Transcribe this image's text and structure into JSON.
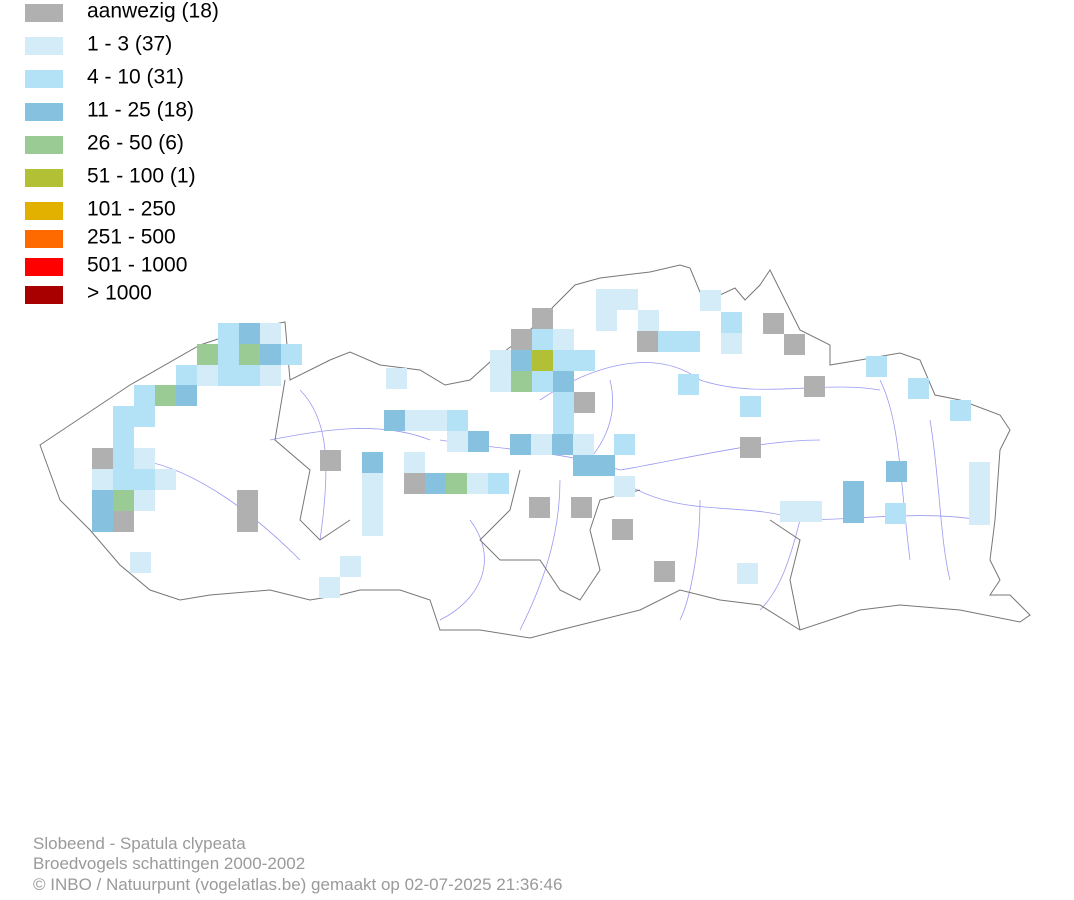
{
  "legend": [
    {
      "label": "aanwezig (18)",
      "color": "#b0b0b0"
    },
    {
      "label": "1 - 3 (37)",
      "color": "#d4ebf8"
    },
    {
      "label": "4 - 10 (31)",
      "color": "#b3e2f7"
    },
    {
      "label": "11 - 25 (18)",
      "color": "#86c1df"
    },
    {
      "label": "26 - 50 (6)",
      "color": "#9bcb94"
    },
    {
      "label": "51 - 100 (1)",
      "color": "#b1c035"
    },
    {
      "label": "101 - 250",
      "color": "#e2b100"
    },
    {
      "label": "251 - 500",
      "color": "#ff6a00"
    },
    {
      "label": "501 - 1000",
      "color": "#ff0000"
    },
    {
      "label": "> 1000",
      "color": "#a80000"
    }
  ],
  "footer": {
    "species": "Slobeend - Spatula clypeata",
    "survey": "Broedvogels schattingen 2000-2002",
    "credit": "© INBO / Natuurpunt (vogelatlas.be) gemaakt op 02-07-2025 21:36:46"
  }
}
